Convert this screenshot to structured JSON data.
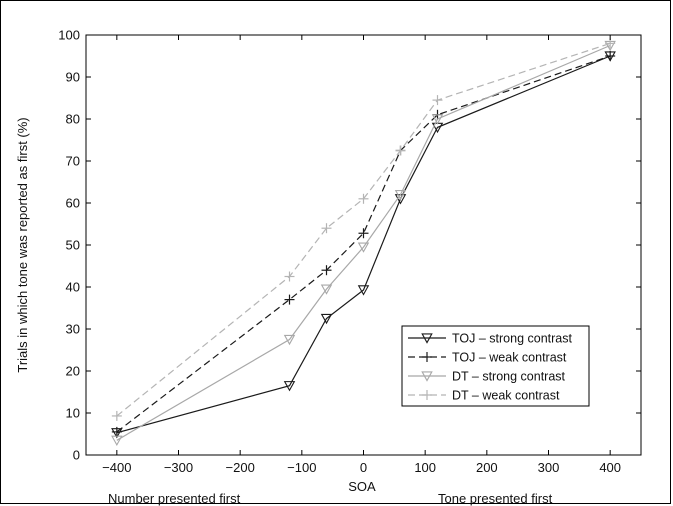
{
  "chart_data": {
    "type": "line",
    "xlabel": "SOA",
    "ylabel": "Trials in which tone was reported as first (%)",
    "xlim": [
      -450,
      450
    ],
    "ylim": [
      0,
      100
    ],
    "xticks": [
      -400,
      -300,
      -200,
      -100,
      0,
      100,
      200,
      300,
      400
    ],
    "yticks": [
      0,
      10,
      20,
      30,
      40,
      50,
      60,
      70,
      80,
      90,
      100
    ],
    "grid": false,
    "legend_position": "lower-right",
    "annotations": {
      "left": "Number presented first",
      "right": "Tone presented first"
    },
    "x": [
      -400,
      -120,
      -60,
      0,
      60,
      120,
      400
    ],
    "series": [
      {
        "name": "TOJ – strong contrast",
        "values": [
          5.3,
          16.5,
          32.5,
          39.3,
          61.0,
          78.0,
          95.0
        ],
        "color": "#1a1a1a",
        "dash": "solid",
        "marker": "triangle-down"
      },
      {
        "name": "TOJ – weak contrast",
        "values": [
          5.5,
          37.0,
          44.0,
          52.8,
          72.5,
          81.0,
          95.0
        ],
        "color": "#1a1a1a",
        "dash": "dashed",
        "marker": "plus"
      },
      {
        "name": "DT – strong contrast",
        "values": [
          3.5,
          27.5,
          39.5,
          49.5,
          62.0,
          80.0,
          97.5
        ],
        "color": "#a8a8a8",
        "dash": "solid",
        "marker": "triangle-down"
      },
      {
        "name": "DT – weak contrast",
        "values": [
          9.3,
          42.5,
          54.0,
          61.0,
          72.5,
          84.5,
          98.0
        ],
        "color": "#b4b4b4",
        "dash": "dashed",
        "marker": "plus"
      }
    ]
  }
}
